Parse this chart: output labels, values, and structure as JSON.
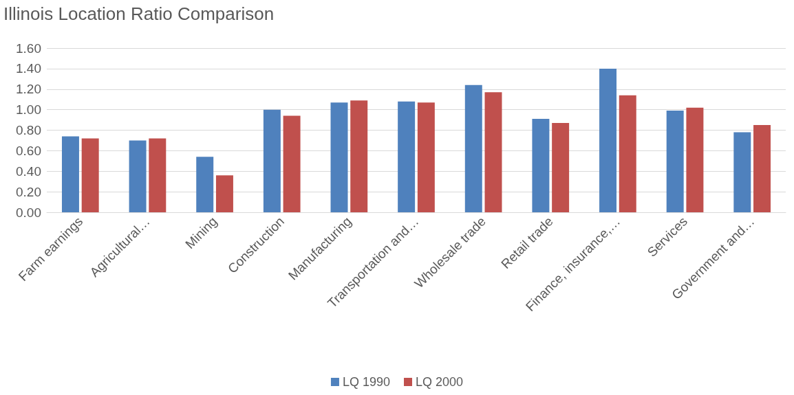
{
  "chart_data": {
    "type": "bar",
    "title": "Illinois Location Ratio Comparison",
    "categories": [
      "Farm earnings",
      "Agricultural…",
      "Mining",
      "Construction",
      "Manufacturing",
      "Transportation and…",
      "Wholesale trade",
      "Retail trade",
      "Finance, insurance,…",
      "Services",
      "Government and…"
    ],
    "series": [
      {
        "name": "LQ 1990",
        "color": "#4f81bd",
        "values": [
          0.74,
          0.7,
          0.54,
          1.0,
          1.07,
          1.08,
          1.24,
          0.91,
          1.4,
          0.99,
          0.78
        ]
      },
      {
        "name": "LQ 2000",
        "color": "#c0504d",
        "values": [
          0.72,
          0.72,
          0.36,
          0.94,
          1.09,
          1.07,
          1.17,
          0.87,
          1.14,
          1.02,
          0.85
        ]
      }
    ],
    "ylim": [
      0,
      1.6
    ],
    "yticks": [
      {
        "value": 0,
        "label": "0.00"
      },
      {
        "value": 0.2,
        "label": "0.20"
      },
      {
        "value": 0.4,
        "label": "0.40"
      },
      {
        "value": 0.6,
        "label": "0.60"
      },
      {
        "value": 0.8,
        "label": "0.80"
      },
      {
        "value": 1,
        "label": "1.00"
      },
      {
        "value": 1.2,
        "label": "1.20"
      },
      {
        "value": 1.4,
        "label": "1.40"
      },
      {
        "value": 1.6,
        "label": "1.60"
      }
    ],
    "grid": "y",
    "legend": "bottom"
  }
}
